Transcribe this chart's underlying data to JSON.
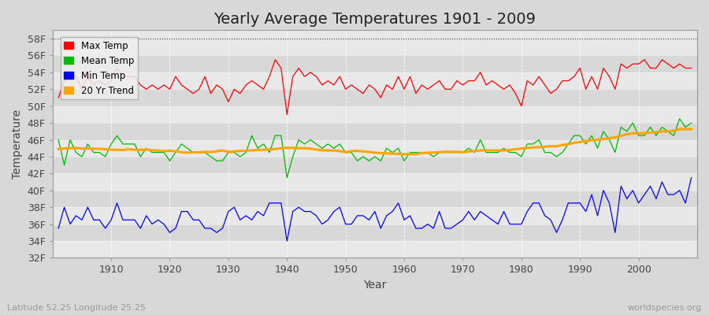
{
  "title": "Yearly Average Temperatures 1901 - 2009",
  "xlabel": "Year",
  "ylabel": "Temperature",
  "subtitle_lat": "Latitude 52.25 Longitude 25.25",
  "watermark": "worldspecies.org",
  "years": [
    1901,
    1902,
    1903,
    1904,
    1905,
    1906,
    1907,
    1908,
    1909,
    1910,
    1911,
    1912,
    1913,
    1914,
    1915,
    1916,
    1917,
    1918,
    1919,
    1920,
    1921,
    1922,
    1923,
    1924,
    1925,
    1926,
    1927,
    1928,
    1929,
    1930,
    1931,
    1932,
    1933,
    1934,
    1935,
    1936,
    1937,
    1938,
    1939,
    1940,
    1941,
    1942,
    1943,
    1944,
    1945,
    1946,
    1947,
    1948,
    1949,
    1950,
    1951,
    1952,
    1953,
    1954,
    1955,
    1956,
    1957,
    1958,
    1959,
    1960,
    1961,
    1962,
    1963,
    1964,
    1965,
    1966,
    1967,
    1968,
    1969,
    1970,
    1971,
    1972,
    1973,
    1974,
    1975,
    1976,
    1977,
    1978,
    1979,
    1980,
    1981,
    1982,
    1983,
    1984,
    1985,
    1986,
    1987,
    1988,
    1989,
    1990,
    1991,
    1992,
    1993,
    1994,
    1995,
    1996,
    1997,
    1998,
    1999,
    2000,
    2001,
    2002,
    2003,
    2004,
    2005,
    2006,
    2007,
    2008,
    2009
  ],
  "max_temp": [
    51.0,
    53.0,
    53.5,
    53.5,
    52.0,
    53.5,
    52.5,
    53.0,
    52.5,
    53.0,
    54.5,
    53.5,
    53.5,
    53.5,
    52.5,
    52.0,
    52.5,
    52.0,
    52.5,
    52.0,
    53.5,
    52.5,
    52.0,
    51.5,
    52.0,
    53.5,
    51.5,
    52.5,
    52.0,
    50.5,
    52.0,
    51.5,
    52.5,
    53.0,
    52.5,
    52.0,
    53.5,
    55.5,
    54.5,
    49.0,
    53.5,
    54.5,
    53.5,
    54.0,
    53.5,
    52.5,
    53.0,
    52.5,
    53.5,
    52.0,
    52.5,
    52.0,
    51.5,
    52.5,
    52.0,
    51.0,
    52.5,
    52.0,
    53.5,
    52.0,
    53.5,
    51.5,
    52.5,
    52.0,
    52.5,
    53.0,
    52.0,
    52.0,
    53.0,
    52.5,
    53.0,
    53.0,
    54.0,
    52.5,
    53.0,
    52.5,
    52.0,
    52.5,
    51.5,
    50.0,
    53.0,
    52.5,
    53.5,
    52.5,
    51.5,
    52.0,
    53.0,
    53.0,
    53.5,
    54.5,
    52.0,
    53.5,
    52.0,
    54.5,
    53.5,
    52.0,
    55.0,
    54.5,
    55.0,
    55.0,
    55.5,
    54.5,
    54.5,
    55.5,
    55.0,
    54.5,
    55.0,
    54.5,
    54.5
  ],
  "mean_temp": [
    46.0,
    43.0,
    46.0,
    44.5,
    44.0,
    45.5,
    44.5,
    44.5,
    44.0,
    45.5,
    46.5,
    45.5,
    45.5,
    45.5,
    44.0,
    45.0,
    44.5,
    44.5,
    44.5,
    43.5,
    44.5,
    45.5,
    45.0,
    44.5,
    44.5,
    44.5,
    44.0,
    43.5,
    43.5,
    44.5,
    44.5,
    44.0,
    44.5,
    46.5,
    45.0,
    45.5,
    44.5,
    46.5,
    46.5,
    41.5,
    44.0,
    46.0,
    45.5,
    46.0,
    45.5,
    45.0,
    45.5,
    45.0,
    45.5,
    44.5,
    44.5,
    43.5,
    44.0,
    43.5,
    44.0,
    43.5,
    45.0,
    44.5,
    45.0,
    43.5,
    44.5,
    44.5,
    44.5,
    44.5,
    44.0,
    44.5,
    44.5,
    44.5,
    44.5,
    44.5,
    45.0,
    44.5,
    46.0,
    44.5,
    44.5,
    44.5,
    45.0,
    44.5,
    44.5,
    44.0,
    45.5,
    45.5,
    46.0,
    44.5,
    44.5,
    44.0,
    44.5,
    45.5,
    46.5,
    46.5,
    45.5,
    46.5,
    45.0,
    47.0,
    46.0,
    44.5,
    47.5,
    47.0,
    48.0,
    46.5,
    46.5,
    47.5,
    46.5,
    47.5,
    47.0,
    46.5,
    48.5,
    47.5,
    48.0
  ],
  "min_temp": [
    35.5,
    38.0,
    36.0,
    37.0,
    36.5,
    38.0,
    36.5,
    36.5,
    35.5,
    36.5,
    38.5,
    36.5,
    36.5,
    36.5,
    35.5,
    37.0,
    36.0,
    36.5,
    36.0,
    35.0,
    35.5,
    37.5,
    37.5,
    36.5,
    36.5,
    35.5,
    35.5,
    35.0,
    35.5,
    37.5,
    38.0,
    36.5,
    37.0,
    36.5,
    37.5,
    37.0,
    38.5,
    38.5,
    38.5,
    34.0,
    37.5,
    38.0,
    37.5,
    37.5,
    37.0,
    36.0,
    36.5,
    37.5,
    38.0,
    36.0,
    36.0,
    37.0,
    37.0,
    36.5,
    37.5,
    35.5,
    37.0,
    37.5,
    38.5,
    36.5,
    37.0,
    35.5,
    35.5,
    36.0,
    35.5,
    37.5,
    35.5,
    35.5,
    36.0,
    36.5,
    37.5,
    36.5,
    37.5,
    37.0,
    36.5,
    36.0,
    37.5,
    36.0,
    36.0,
    36.0,
    37.5,
    38.5,
    38.5,
    37.0,
    36.5,
    35.0,
    36.5,
    38.5,
    38.5,
    38.5,
    37.5,
    39.5,
    37.0,
    40.0,
    38.5,
    35.0,
    40.5,
    39.0,
    40.0,
    38.5,
    39.5,
    40.5,
    39.0,
    41.0,
    39.5,
    39.5,
    40.0,
    38.5,
    41.5
  ],
  "colors": {
    "max": "#ff0000",
    "mean": "#00bb00",
    "min": "#0000ff",
    "trend": "#ffa500",
    "fig_bg": "#d8d8d8",
    "plot_bg_light": "#e8e8e8",
    "plot_bg_dark": "#d8d8d8",
    "grid_major": "#ffffff",
    "grid_minor": "#cccccc",
    "spine": "#999999",
    "text": "#444444"
  },
  "ylim": [
    32,
    59
  ],
  "yticks": [
    32,
    34,
    36,
    38,
    40,
    42,
    44,
    46,
    48,
    50,
    52,
    54,
    56,
    58
  ],
  "xlim": [
    1900,
    2010
  ],
  "xticks": [
    1910,
    1920,
    1930,
    1940,
    1950,
    1960,
    1970,
    1980,
    1990,
    2000
  ],
  "title_fontsize": 14,
  "axis_fontsize": 10,
  "tick_fontsize": 9,
  "legend_fontsize": 8.5
}
